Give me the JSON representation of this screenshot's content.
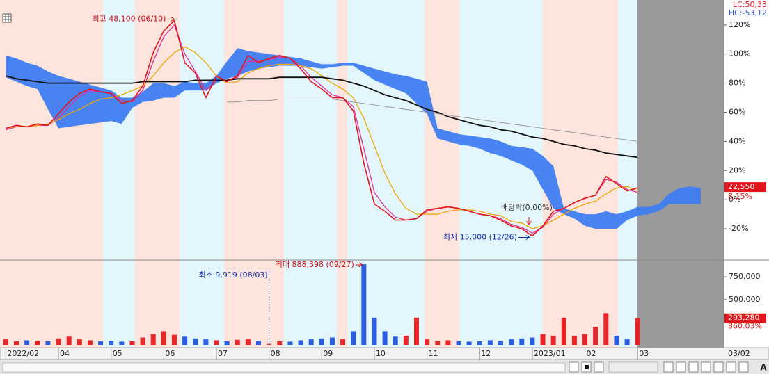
{
  "chart_data": [
    {
      "type": "line",
      "ylim": [
        -40.5,
        137.1
      ],
      "yticks": [
        {
          "value": 120,
          "label": "120%"
        },
        {
          "value": 100,
          "label": "100%"
        },
        {
          "value": 80,
          "label": "80%"
        },
        {
          "value": 60,
          "label": "60%"
        },
        {
          "value": 40,
          "label": "40%"
        },
        {
          "value": 20,
          "label": "20%"
        },
        {
          "value": 0,
          "label": "0%"
        },
        {
          "value": -20,
          "label": "-20%"
        }
      ],
      "series": [
        {
          "color": "#e3141c",
          "width": 1.6,
          "values": [
            49,
            51,
            50,
            52,
            51,
            59,
            67,
            73,
            76,
            74,
            73,
            66,
            68,
            78,
            101,
            116,
            123,
            94,
            87,
            70,
            85,
            81,
            85,
            99,
            94,
            97,
            99,
            97,
            90,
            81,
            76,
            70,
            70,
            61,
            25,
            -3,
            -8,
            -14,
            -14,
            -13,
            -7,
            -6,
            -5,
            -6,
            -8,
            -10,
            -11,
            -14,
            -18,
            -20,
            -25,
            -18,
            -8,
            -6,
            -2,
            1,
            3,
            16,
            11,
            6,
            8.15,
            null,
            null,
            null,
            null,
            null,
            null
          ]
        },
        {
          "color": "#e0309a",
          "width": 1.3,
          "values": [
            48,
            50,
            50,
            51,
            51,
            56,
            64,
            71,
            75,
            74,
            73,
            68,
            67,
            75,
            95,
            112,
            120,
            100,
            88,
            75,
            82,
            82,
            84,
            95,
            95,
            96,
            98,
            97,
            92,
            84,
            78,
            72,
            70,
            64,
            35,
            5,
            -5,
            -12,
            -14,
            -13,
            -8,
            -6,
            -5,
            -6,
            -8,
            -10,
            -11,
            -13,
            -17,
            -19,
            -23,
            -19,
            -10,
            -6,
            -2,
            1,
            3,
            14,
            12,
            7,
            5,
            null,
            null,
            null,
            null,
            null,
            null
          ]
        },
        {
          "color": "#f0a400",
          "width": 1.3,
          "values": [
            49,
            50,
            50,
            51,
            52,
            55,
            59,
            62,
            66,
            69,
            70,
            72,
            75,
            78,
            85,
            94,
            101,
            105,
            101,
            94,
            85,
            80,
            81,
            87,
            90,
            92,
            93,
            93,
            92,
            90,
            85,
            80,
            76,
            70,
            56,
            37,
            18,
            4,
            -6,
            -10,
            -10,
            -10,
            -8,
            -7,
            -7,
            -8,
            -10,
            -11,
            -15,
            -16,
            -20,
            -18,
            -14,
            -10,
            -6,
            -3,
            -1,
            4,
            8,
            9,
            6,
            null,
            null,
            null,
            null,
            null,
            null
          ]
        },
        {
          "color": "#111111",
          "width": 1.8,
          "values": [
            85,
            83,
            82,
            81,
            80,
            80,
            80,
            80,
            80,
            80,
            80,
            80,
            80,
            81,
            81,
            81,
            81,
            81,
            82,
            82,
            82,
            82,
            83,
            83,
            83,
            83,
            84,
            84,
            84,
            84,
            84,
            83,
            82,
            80,
            78,
            75,
            72,
            70,
            68,
            65,
            62,
            60,
            57,
            55,
            53,
            51,
            50,
            48,
            47,
            45,
            43,
            42,
            40,
            38,
            37,
            35,
            34,
            32,
            31,
            30,
            29,
            null,
            null,
            null,
            null,
            null,
            null
          ]
        },
        {
          "color": "#8a8a8a",
          "width": 0.8,
          "values": [
            null,
            null,
            null,
            null,
            null,
            null,
            null,
            null,
            null,
            null,
            null,
            null,
            null,
            null,
            null,
            null,
            null,
            null,
            null,
            null,
            null,
            67,
            67,
            68,
            68,
            68,
            69,
            69,
            69,
            69,
            69,
            69,
            68,
            67,
            66,
            65,
            64,
            63,
            62,
            61,
            60,
            59,
            58,
            57,
            56,
            55,
            54,
            53,
            52,
            51,
            50,
            49,
            48,
            47,
            46,
            45,
            44,
            43,
            42,
            41,
            40,
            null,
            null,
            null,
            null,
            null,
            null
          ]
        }
      ],
      "cloud": {
        "color": "#3f7df2",
        "upper": [
          99,
          97,
          94,
          92,
          88,
          85,
          83,
          81,
          79,
          77,
          75,
          70,
          70,
          74,
          80,
          80,
          78,
          81,
          80,
          80,
          85,
          95,
          104,
          102,
          101,
          100,
          99,
          98,
          97,
          95,
          93,
          93,
          94,
          94,
          92,
          90,
          88,
          86,
          85,
          83,
          81,
          49,
          47,
          45,
          44,
          43,
          42,
          40,
          37,
          36,
          35,
          30,
          23,
          -6,
          -8,
          -10,
          -10,
          -8,
          -10,
          -8,
          -5,
          -5,
          -3,
          4,
          8,
          9,
          8
        ],
        "lower": [
          84,
          81,
          78,
          76,
          62,
          49,
          50,
          51,
          52,
          53,
          54,
          52,
          63,
          67,
          68,
          70,
          70,
          75,
          75,
          75,
          80,
          83,
          85,
          88,
          90,
          91,
          92,
          92,
          92,
          91,
          90,
          91,
          92,
          92,
          87,
          82,
          79,
          76,
          73,
          66,
          59,
          42,
          40,
          38,
          37,
          35,
          32,
          30,
          27,
          24,
          20,
          7,
          -6,
          -10,
          -13,
          -18,
          -20,
          -20,
          -20,
          -14,
          -11,
          -10,
          -8,
          -3,
          -3,
          -3,
          -3
        ]
      },
      "high_label": "최고 48,100 (06/10)",
      "low_label": "최저 15,000 (12/26)",
      "event_label": "배당락(0.00%)",
      "lc_label": "LC:50,33",
      "hc_label": "HC:-53,12",
      "price_label": "22,550",
      "change_label": "8.15%"
    },
    {
      "type": "bar",
      "categories": [
        "2022/02",
        null,
        null,
        null,
        null,
        "04",
        null,
        null,
        null,
        null,
        "05",
        null,
        null,
        null,
        null,
        "06",
        null,
        null,
        null,
        null,
        "07",
        null,
        null,
        null,
        null,
        "08",
        null,
        null,
        null,
        null,
        "09",
        null,
        null,
        null,
        null,
        "10",
        null,
        null,
        null,
        null,
        "11",
        null,
        null,
        null,
        null,
        "12",
        null,
        null,
        null,
        null,
        "2023/01",
        null,
        null,
        null,
        null,
        "02",
        null,
        null,
        null,
        null,
        "03",
        null,
        null,
        null,
        null,
        null,
        null
      ],
      "values": [
        60000,
        40000,
        50000,
        45000,
        40000,
        70000,
        90000,
        60000,
        50000,
        40000,
        45000,
        35000,
        40000,
        80000,
        120000,
        150000,
        110000,
        90000,
        70000,
        60000,
        50000,
        40000,
        55000,
        60000,
        45000,
        9919,
        40000,
        35000,
        50000,
        60000,
        70000,
        80000,
        60000,
        150000,
        888398,
        300000,
        150000,
        90000,
        100000,
        300000,
        60000,
        40000,
        50000,
        40000,
        35000,
        40000,
        50000,
        45000,
        60000,
        70000,
        80000,
        120000,
        100000,
        300000,
        100000,
        120000,
        200000,
        350000,
        100000,
        60000,
        293280,
        null,
        null,
        null,
        null,
        null,
        null
      ],
      "colors": {
        "up": "#e8262a",
        "down": "#2b5de0"
      },
      "ylim": [
        0,
        920000
      ],
      "yticks": [
        {
          "value": 750000,
          "label": "750,000"
        },
        {
          "value": 500000,
          "label": "500,000"
        }
      ],
      "max_label": "최대 888,398 (09/27)",
      "min_label": "최소 9,919 (08/03)",
      "volume_label": "293,280",
      "volume_change_label": "860.03%",
      "date_label": "03/02"
    }
  ],
  "toolbar": {
    "label": "A"
  }
}
